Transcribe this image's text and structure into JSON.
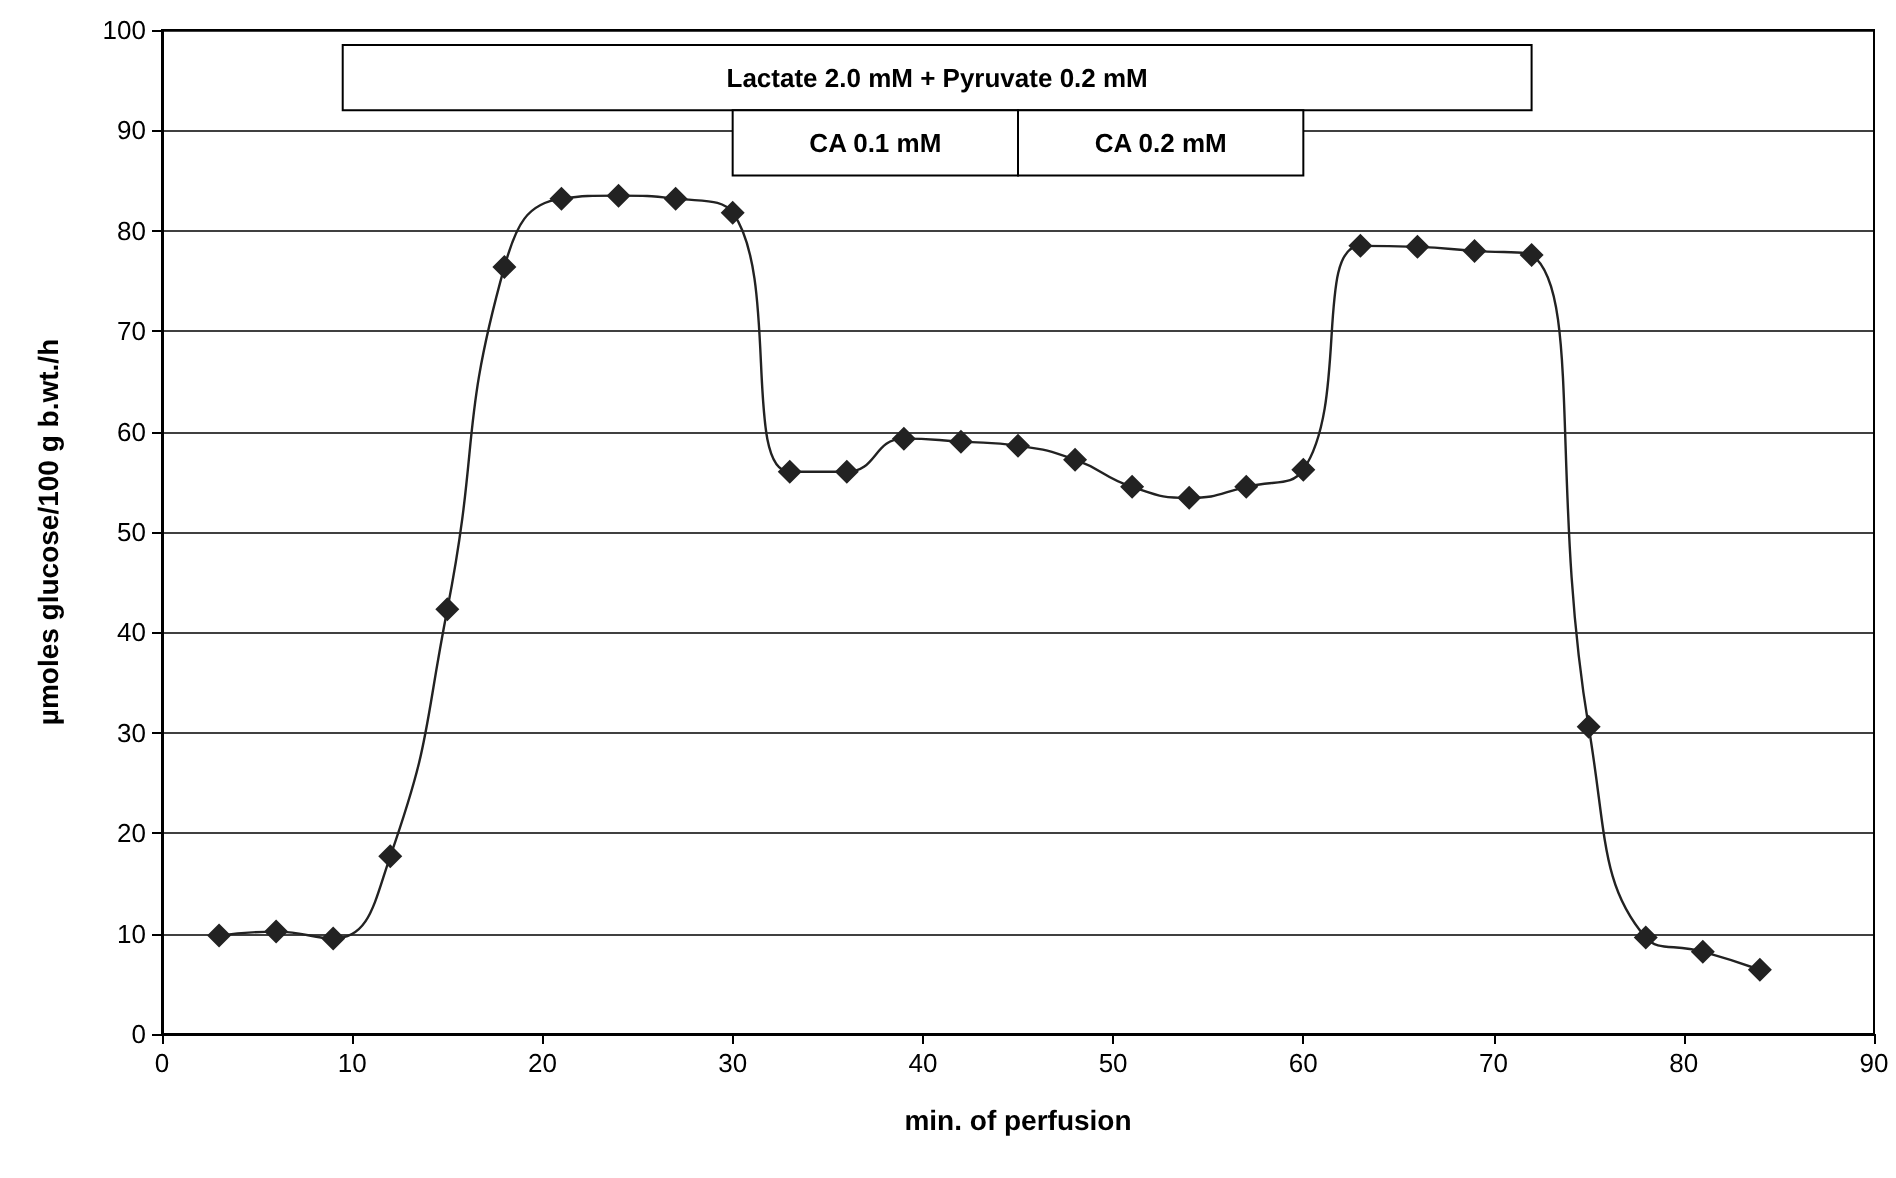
{
  "chart_data": {
    "type": "line",
    "xlabel": "min. of perfusion",
    "ylabel": "µmoles glucose/100 g b.wt./h",
    "x": [
      3,
      6,
      9,
      12,
      15,
      18,
      21,
      24,
      27,
      30,
      33,
      36,
      39,
      42,
      45,
      48,
      51,
      54,
      57,
      60,
      63,
      66,
      69,
      72,
      75,
      78,
      81,
      84
    ],
    "series": [
      {
        "color": "#222222",
        "values": [
          9.8,
          10.2,
          9.5,
          17.7,
          42.3,
          76.4,
          83.2,
          83.5,
          83.2,
          81.8,
          56,
          56,
          59.3,
          59,
          58.6,
          57.2,
          54.5,
          53.4,
          54.5,
          56.2,
          78.5,
          78.4,
          78,
          77.6,
          30.6,
          9.6,
          8.2,
          6.4
        ]
      }
    ],
    "xlim": [
      0,
      90
    ],
    "xticks": [
      0,
      10,
      20,
      30,
      40,
      50,
      60,
      70,
      80,
      90
    ],
    "ylim": [
      0,
      100
    ],
    "yticks": [
      0,
      10,
      20,
      30,
      40,
      50,
      60,
      70,
      80,
      90,
      100
    ],
    "bands": [
      {
        "axis": "x",
        "from": 9.5,
        "to": 72,
        "label": "Lactate 2.0 mM + Pyruvate 0.2 mM",
        "color": "#ffffff"
      },
      {
        "axis": "x",
        "from": 30,
        "to": 45,
        "label": "CA 0.1 mM",
        "color": "#ffffff"
      },
      {
        "axis": "x",
        "from": 45,
        "to": 60,
        "label": "CA 0.2 mM",
        "color": "#ffffff"
      }
    ],
    "grid": "y",
    "marker": "diamond",
    "line_style": "solid"
  }
}
